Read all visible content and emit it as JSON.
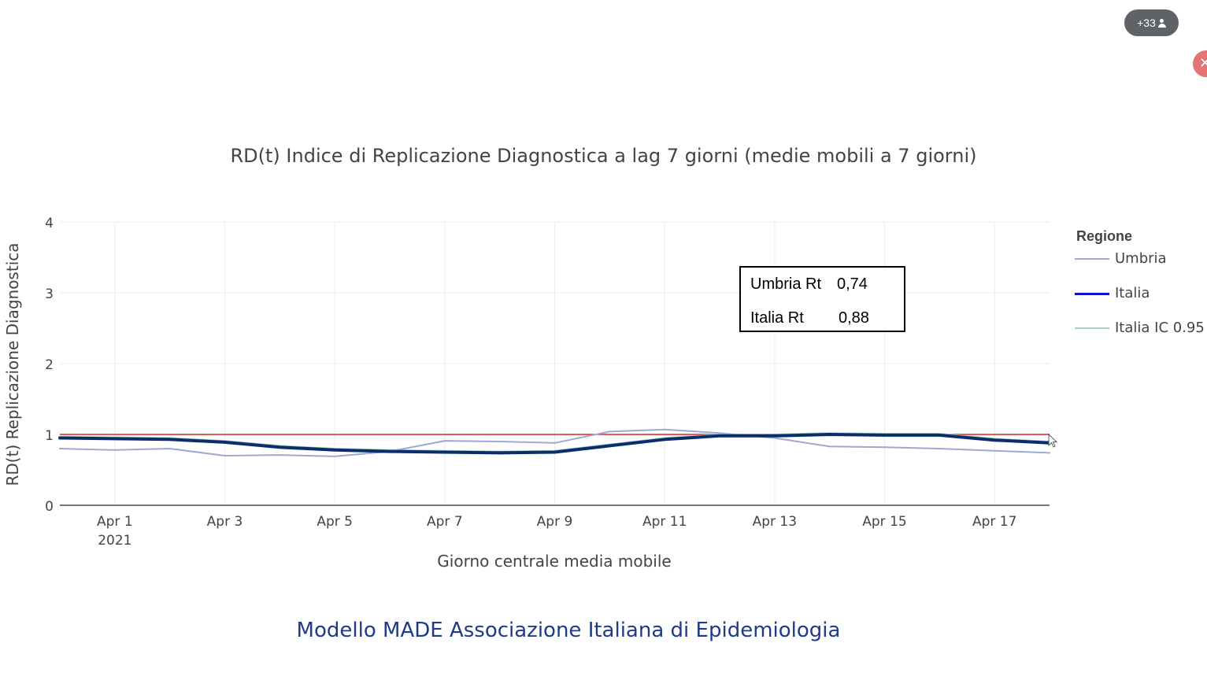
{
  "overlay": {
    "participants_badge": "+33",
    "close_glyph": "✕"
  },
  "chart_data": {
    "type": "line",
    "title": "RD(t) Indice di Replicazione Diagnostica a lag 7 giorni (medie mobili a 7 giorni)",
    "xlabel": "Giorno centrale media mobile",
    "ylabel": "RD(t) Replicazione Diagnostica",
    "x": [
      "2021-03-31",
      "2021-04-01",
      "2021-04-02",
      "2021-04-03",
      "2021-04-04",
      "2021-04-05",
      "2021-04-06",
      "2021-04-07",
      "2021-04-08",
      "2021-04-09",
      "2021-04-10",
      "2021-04-11",
      "2021-04-12",
      "2021-04-13",
      "2021-04-14",
      "2021-04-15",
      "2021-04-16",
      "2021-04-17",
      "2021-04-18"
    ],
    "xlim": [
      "2021-03-31",
      "2021-04-18"
    ],
    "ylim": [
      0,
      4
    ],
    "y_ticks": [
      0,
      1,
      2,
      3,
      4
    ],
    "x_tick_labels": [
      {
        "x": "2021-04-01",
        "label": "Apr 1",
        "sublabel": "2021"
      },
      {
        "x": "2021-04-03",
        "label": "Apr 3",
        "sublabel": ""
      },
      {
        "x": "2021-04-05",
        "label": "Apr 5",
        "sublabel": ""
      },
      {
        "x": "2021-04-07",
        "label": "Apr 7",
        "sublabel": ""
      },
      {
        "x": "2021-04-09",
        "label": "Apr 9",
        "sublabel": ""
      },
      {
        "x": "2021-04-11",
        "label": "Apr 11",
        "sublabel": ""
      },
      {
        "x": "2021-04-13",
        "label": "Apr 13",
        "sublabel": ""
      },
      {
        "x": "2021-04-15",
        "label": "Apr 15",
        "sublabel": ""
      },
      {
        "x": "2021-04-17",
        "label": "Apr 17",
        "sublabel": ""
      }
    ],
    "grid": true,
    "legend_title": "Regione",
    "legend_position": "right",
    "series": [
      {
        "name": "Umbria",
        "color": "#9ea8d2",
        "values": [
          0.8,
          0.78,
          0.8,
          0.7,
          0.71,
          0.69,
          0.76,
          0.91,
          0.9,
          0.88,
          1.04,
          1.07,
          1.02,
          0.95,
          0.83,
          0.82,
          0.8,
          0.77,
          0.74
        ]
      },
      {
        "name": "Italia",
        "color": "#0a2e6b",
        "legend_color": "#1111cc",
        "values": [
          0.95,
          0.94,
          0.93,
          0.89,
          0.82,
          0.78,
          0.76,
          0.75,
          0.74,
          0.75,
          0.84,
          0.93,
          0.98,
          0.98,
          1.0,
          0.99,
          0.99,
          0.92,
          0.88
        ]
      },
      {
        "name": "Italia IC 0.95",
        "color": "#a9cfc0",
        "values": [
          0.97,
          0.96,
          0.95,
          0.91,
          0.84,
          0.8,
          0.78,
          0.77,
          0.76,
          0.77,
          0.86,
          0.95,
          1.0,
          1.0,
          1.02,
          1.01,
          1.01,
          0.94,
          0.9
        ]
      }
    ],
    "reference_line": {
      "y": 1,
      "color": "#dd2222"
    },
    "tooltip": {
      "rows": [
        {
          "label": "Umbria Rt",
          "value": "0,74"
        },
        {
          "label": "Italia Rt",
          "value": "0,88"
        }
      ]
    }
  },
  "footer": {
    "caption": "Modello MADE Associazione Italiana di Epidemiologia"
  }
}
